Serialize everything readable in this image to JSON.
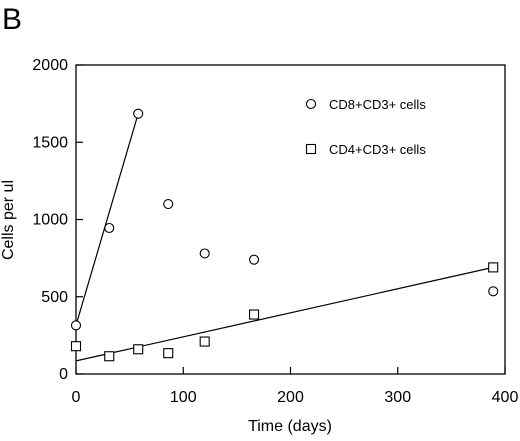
{
  "chart_data": {
    "panel_label": "B",
    "type": "scatter",
    "xlabel": "Time (days)",
    "ylabel": "Cells per ul",
    "xlim": [
      0,
      400
    ],
    "ylim": [
      0,
      2000
    ],
    "x_ticks": [
      0,
      100,
      200,
      300,
      400
    ],
    "y_ticks": [
      0,
      500,
      1000,
      1500,
      2000
    ],
    "legend_position": "top-right",
    "series": [
      {
        "name": "CD8+CD3+ cells",
        "marker": "circle",
        "points": [
          {
            "x": 0,
            "y": 315
          },
          {
            "x": 31,
            "y": 945
          },
          {
            "x": 58,
            "y": 1685
          },
          {
            "x": 86,
            "y": 1100
          },
          {
            "x": 120,
            "y": 780
          },
          {
            "x": 166,
            "y": 740
          },
          {
            "x": 389,
            "y": 535
          }
        ],
        "fit_line": {
          "x": [
            0,
            58
          ],
          "y": [
            315,
            1685
          ]
        }
      },
      {
        "name": "CD4+CD3+ cells",
        "marker": "square",
        "points": [
          {
            "x": 0,
            "y": 180
          },
          {
            "x": 31,
            "y": 115
          },
          {
            "x": 58,
            "y": 160
          },
          {
            "x": 86,
            "y": 135
          },
          {
            "x": 120,
            "y": 210
          },
          {
            "x": 166,
            "y": 385
          },
          {
            "x": 389,
            "y": 690
          }
        ],
        "fit_line": {
          "x": [
            0,
            389
          ],
          "y": [
            85,
            690
          ]
        }
      }
    ]
  }
}
